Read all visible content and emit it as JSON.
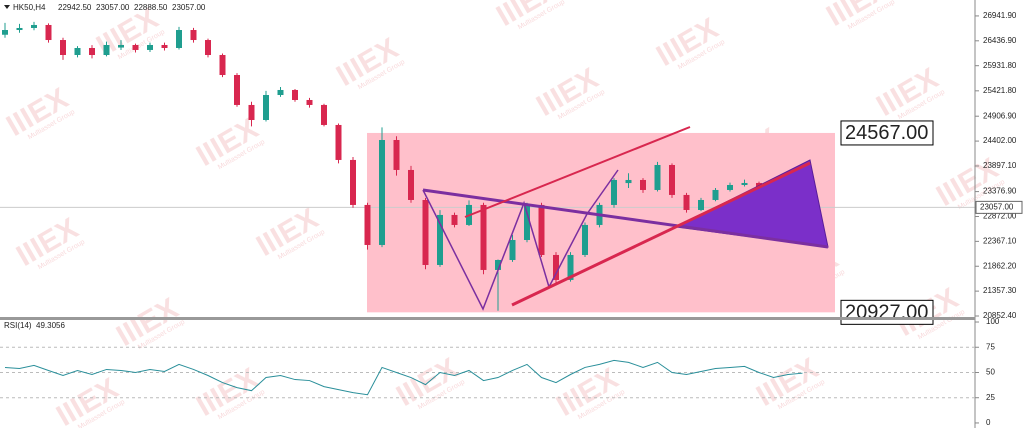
{
  "chart_data": {
    "type": "candlestick",
    "symbol": "HK50,H4",
    "quote": [
      "22942.50",
      "23057.00",
      "22888.50",
      "23057.00"
    ],
    "ylim": [
      20812,
      27265
    ],
    "yticks": [
      {
        "value": 26941.9,
        "label": "26941.90"
      },
      {
        "value": 26436.9,
        "label": "26436.90"
      },
      {
        "value": 25931.8,
        "label": "25931.80"
      },
      {
        "value": 25421.8,
        "label": "25421.80"
      },
      {
        "value": 24906.9,
        "label": "24906.90"
      },
      {
        "value": 24402,
        "label": "24402.00"
      },
      {
        "value": 23897.1,
        "label": "23897.10"
      },
      {
        "value": 23376.9,
        "label": "23376.90"
      },
      {
        "value": 22872,
        "label": "22872.00"
      },
      {
        "value": 22367.1,
        "label": "22367.10"
      },
      {
        "value": 21862.2,
        "label": "21862.20"
      },
      {
        "value": 21357.3,
        "label": "21357.30"
      },
      {
        "value": 20852.4,
        "label": "20852.40"
      }
    ],
    "up_color": "#1f9e8f",
    "down_color": "#d8274f",
    "last_price": {
      "value": 23057,
      "label": "23057.00"
    },
    "box": {
      "color": "#ffc0cb",
      "top": {
        "value": 24567,
        "label": "24567.00"
      },
      "bottom": {
        "value": 20927,
        "label": "20927.00"
      }
    },
    "candles": [
      [
        26560,
        26800,
        26500,
        26656
      ],
      [
        26656,
        26780,
        26600,
        26697
      ],
      [
        26697,
        26820,
        26650,
        26758
      ],
      [
        26758,
        26790,
        26400,
        26453
      ],
      [
        26453,
        26500,
        26050,
        26149
      ],
      [
        26149,
        26330,
        26100,
        26291
      ],
      [
        26291,
        26350,
        26080,
        26149
      ],
      [
        26149,
        26420,
        26120,
        26352
      ],
      [
        26300,
        26450,
        26250,
        26352
      ],
      [
        26352,
        26380,
        26200,
        26251
      ],
      [
        26251,
        26400,
        26210,
        26352
      ],
      [
        26352,
        26400,
        26240,
        26291
      ],
      [
        26291,
        26720,
        26260,
        26656
      ],
      [
        26656,
        26700,
        26400,
        26453
      ],
      [
        26453,
        26480,
        26100,
        26149
      ],
      [
        26149,
        26180,
        25700,
        25743
      ],
      [
        25743,
        25780,
        25100,
        25135
      ],
      [
        25135,
        25200,
        24700,
        24830
      ],
      [
        24830,
        25420,
        24800,
        25337
      ],
      [
        25337,
        25500,
        25300,
        25439
      ],
      [
        25439,
        25460,
        25200,
        25236
      ],
      [
        25236,
        25280,
        25080,
        25135
      ],
      [
        25135,
        25160,
        24700,
        24729
      ],
      [
        24729,
        24760,
        23950,
        24019
      ],
      [
        24019,
        24080,
        23050,
        23106
      ],
      [
        23106,
        23150,
        22200,
        22294
      ],
      [
        22294,
        24680,
        22250,
        24424
      ],
      [
        24424,
        24500,
        23700,
        23816
      ],
      [
        23816,
        23900,
        23150,
        23207
      ],
      [
        23207,
        23250,
        21800,
        21888
      ],
      [
        21888,
        23000,
        21850,
        22903
      ],
      [
        22903,
        22950,
        22650,
        22700
      ],
      [
        22700,
        23200,
        22680,
        23106
      ],
      [
        23106,
        23150,
        21700,
        21787
      ],
      [
        21787,
        22000,
        20960,
        21989
      ],
      [
        21989,
        22500,
        21950,
        22395
      ],
      [
        22395,
        23150,
        22350,
        23106
      ],
      [
        23106,
        23150,
        22050,
        22091
      ],
      [
        22091,
        22150,
        21480,
        21584
      ],
      [
        21584,
        22150,
        21550,
        22091
      ],
      [
        22091,
        22750,
        22050,
        22700
      ],
      [
        22700,
        23150,
        22650,
        23106
      ],
      [
        23106,
        23650,
        23050,
        23613
      ],
      [
        23550,
        23750,
        23450,
        23613
      ],
      [
        23613,
        23650,
        23350,
        23410
      ],
      [
        23410,
        23980,
        23380,
        23917
      ],
      [
        23917,
        23950,
        23250,
        23309
      ],
      [
        23309,
        23350,
        22950,
        23004
      ],
      [
        23004,
        23250,
        22980,
        23207
      ],
      [
        23207,
        23450,
        23180,
        23410
      ],
      [
        23410,
        23560,
        23380,
        23511
      ],
      [
        23511,
        23620,
        23480,
        23552
      ],
      [
        23552,
        23580,
        23250,
        23309
      ],
      [
        23309,
        23330,
        22750,
        22801
      ],
      [
        22801,
        23000,
        22780,
        22942.5
      ],
      [
        22942.5,
        23057,
        22888.5,
        23057
      ]
    ],
    "rsi": {
      "name": "RSI(14)",
      "color": "#2a8f9a",
      "ylim": [
        -5,
        102
      ],
      "yticks": [
        100,
        75,
        50,
        25,
        0
      ],
      "values": [
        55,
        54,
        57,
        52,
        47,
        52,
        48,
        53,
        52,
        50,
        53,
        51,
        58,
        53,
        47,
        40,
        35,
        32,
        45,
        47,
        43,
        42,
        36,
        33,
        30,
        28,
        55,
        50,
        45,
        38,
        50,
        47,
        52,
        42,
        45,
        52,
        58,
        45,
        40,
        48,
        55,
        58,
        62,
        60,
        55,
        60,
        50,
        48,
        51,
        54,
        55,
        56,
        50,
        45,
        48,
        49.3056
      ]
    },
    "watermark": {
      "logo": "IIIEX",
      "tagline": "Multiasset Group"
    }
  }
}
